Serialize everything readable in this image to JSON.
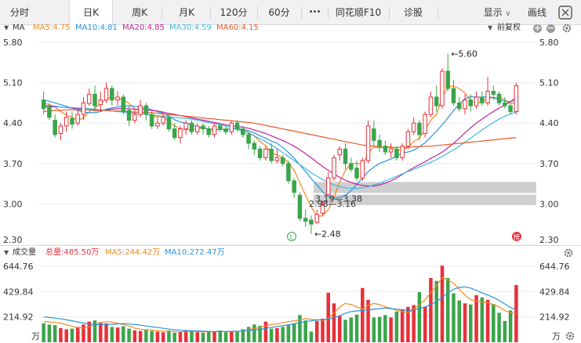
{
  "tabs": [
    {
      "label": "分时",
      "arrow": false
    },
    {
      "label": "日K",
      "arrow": false,
      "active": true
    },
    {
      "label": "周K",
      "arrow": false
    },
    {
      "label": "月K",
      "arrow": false
    },
    {
      "label": "120分",
      "arrow": false
    },
    {
      "label": "60分",
      "arrow": false
    },
    {
      "label": "•••",
      "arrow": false
    },
    {
      "label": "同花顺F10",
      "arrow": true
    },
    {
      "label": "诊股",
      "arrow": false
    },
    {
      "label": "显示",
      "arrow": true
    },
    {
      "label": "画线",
      "arrow": false
    }
  ],
  "kline_header": {
    "title": "MA",
    "ma_labels": [
      {
        "text": "MA5:4.75",
        "color": "#f08a24"
      },
      {
        "text": "MA10:4.81",
        "color": "#2a93e0"
      },
      {
        "text": "MA20:4.85",
        "color": "#c0249c"
      },
      {
        "text": "MA30:4.59",
        "color": "#3fb8e0"
      },
      {
        "text": "MA60:4.15",
        "color": "#e8582a"
      }
    ],
    "adjust_label": "前复权"
  },
  "price_axis": {
    "ticks": [
      "5.80",
      "5.10",
      "4.40",
      "3.70",
      "3.00",
      "2.30"
    ],
    "min": 2.3,
    "max": 5.8
  },
  "annotations": {
    "high": "5.60",
    "low": "2.48",
    "gap_upper": "3.19—3.38",
    "gap_lower": "2.98—3.16",
    "low_badge": "L",
    "list_badge": "榜"
  },
  "volume_header": {
    "title": "成交量",
    "total": "总量:485.50万",
    "ma5": "MA5:244.42万",
    "ma10": "MA10:272.47万"
  },
  "volume_axis": {
    "ticks": [
      "644.76",
      "429.84",
      "214.92"
    ],
    "unit": "万",
    "max": 644.76
  },
  "colors": {
    "up": "#e8303a",
    "down": "#3aa54a",
    "gap": "#cfcfd2"
  },
  "chart_data": {
    "type": "candlestick",
    "candles": [
      [
        4.8,
        4.65,
        4.95,
        4.55
      ],
      [
        4.68,
        4.5,
        4.75,
        4.45
      ],
      [
        4.45,
        4.2,
        4.55,
        4.15
      ],
      [
        4.22,
        4.35,
        4.4,
        4.1
      ],
      [
        4.35,
        4.5,
        4.6,
        4.25
      ],
      [
        4.48,
        4.38,
        4.6,
        4.3
      ],
      [
        4.4,
        4.55,
        4.65,
        4.35
      ],
      [
        4.55,
        4.75,
        4.85,
        4.45
      ],
      [
        4.74,
        4.9,
        5.0,
        4.7
      ],
      [
        4.9,
        4.7,
        5.05,
        4.6
      ],
      [
        4.72,
        4.8,
        4.95,
        4.6
      ],
      [
        4.8,
        5.0,
        5.1,
        4.75
      ],
      [
        5.0,
        4.8,
        5.05,
        4.7
      ],
      [
        4.8,
        4.85,
        4.95,
        4.7
      ],
      [
        4.85,
        4.6,
        4.9,
        4.55
      ],
      [
        4.62,
        4.45,
        4.7,
        4.35
      ],
      [
        4.45,
        4.55,
        4.65,
        4.4
      ],
      [
        4.55,
        4.7,
        4.8,
        4.5
      ],
      [
        4.7,
        4.55,
        4.75,
        4.45
      ],
      [
        4.55,
        4.35,
        4.6,
        4.3
      ],
      [
        4.35,
        4.4,
        4.5,
        4.3
      ],
      [
        4.4,
        4.5,
        4.6,
        4.35
      ],
      [
        4.5,
        4.3,
        4.55,
        4.25
      ],
      [
        4.3,
        4.15,
        4.4,
        4.1
      ],
      [
        4.15,
        4.3,
        4.35,
        4.05
      ],
      [
        4.3,
        4.4,
        4.45,
        4.2
      ],
      [
        4.4,
        4.25,
        4.45,
        4.2
      ],
      [
        4.25,
        4.35,
        4.4,
        4.2
      ],
      [
        4.35,
        4.3,
        4.4,
        4.2
      ],
      [
        4.3,
        4.2,
        4.35,
        4.15
      ],
      [
        4.2,
        4.35,
        4.4,
        4.15
      ],
      [
        4.35,
        4.3,
        4.4,
        4.25
      ],
      [
        4.3,
        4.25,
        4.35,
        4.2
      ],
      [
        4.25,
        4.4,
        4.45,
        4.2
      ],
      [
        4.4,
        4.3,
        4.45,
        4.25
      ],
      [
        4.3,
        4.2,
        4.35,
        4.15
      ],
      [
        4.2,
        4.05,
        4.25,
        3.95
      ],
      [
        4.05,
        3.95,
        4.1,
        3.85
      ],
      [
        3.95,
        3.8,
        4.0,
        3.75
      ],
      [
        3.8,
        3.95,
        4.0,
        3.75
      ],
      [
        3.95,
        3.75,
        4.05,
        3.7
      ],
      [
        3.75,
        3.8,
        3.95,
        3.7
      ],
      [
        3.8,
        3.7,
        3.85,
        3.65
      ],
      [
        3.7,
        3.4,
        3.75,
        3.35
      ],
      [
        3.4,
        3.2,
        3.45,
        3.1
      ],
      [
        3.15,
        2.75,
        3.2,
        2.7
      ],
      [
        2.75,
        2.7,
        2.9,
        2.6
      ],
      [
        2.72,
        2.65,
        2.8,
        2.48
      ],
      [
        2.68,
        2.82,
        2.9,
        2.65
      ],
      [
        2.84,
        2.98,
        3.05,
        2.8
      ],
      [
        3.16,
        3.45,
        3.55,
        3.16
      ],
      [
        3.45,
        3.8,
        3.85,
        3.4
      ],
      [
        3.85,
        3.95,
        4.0,
        3.75
      ],
      [
        3.95,
        3.7,
        4.05,
        3.6
      ],
      [
        3.7,
        3.6,
        3.8,
        3.55
      ],
      [
        3.62,
        3.45,
        3.75,
        3.4
      ],
      [
        3.45,
        3.75,
        3.8,
        3.4
      ],
      [
        3.75,
        4.35,
        4.45,
        3.7
      ],
      [
        4.3,
        4.1,
        4.45,
        4.0
      ],
      [
        4.1,
        4.0,
        4.2,
        3.9
      ],
      [
        4.0,
        3.9,
        4.1,
        3.85
      ],
      [
        3.9,
        3.95,
        4.05,
        3.8
      ],
      [
        3.95,
        3.8,
        4.0,
        3.75
      ],
      [
        3.8,
        4.0,
        4.05,
        3.75
      ],
      [
        4.0,
        4.25,
        4.3,
        3.95
      ],
      [
        4.25,
        4.4,
        4.5,
        4.2
      ],
      [
        4.4,
        4.2,
        4.45,
        4.1
      ],
      [
        4.22,
        4.55,
        4.6,
        4.15
      ],
      [
        4.55,
        4.85,
        4.95,
        4.5
      ],
      [
        4.85,
        4.7,
        5.05,
        4.6
      ],
      [
        4.7,
        5.3,
        5.35,
        4.65
      ],
      [
        5.3,
        5.0,
        5.6,
        4.95
      ],
      [
        5.0,
        4.75,
        5.15,
        4.7
      ],
      [
        4.75,
        4.65,
        4.85,
        4.6
      ],
      [
        4.65,
        4.8,
        4.9,
        4.55
      ],
      [
        4.8,
        4.7,
        4.9,
        4.6
      ],
      [
        4.7,
        4.85,
        4.95,
        4.65
      ],
      [
        4.85,
        4.75,
        4.95,
        4.7
      ],
      [
        4.75,
        4.95,
        5.2,
        4.7
      ],
      [
        4.95,
        4.9,
        5.05,
        4.8
      ],
      [
        4.9,
        4.75,
        4.95,
        4.7
      ],
      [
        4.75,
        4.7,
        4.85,
        4.65
      ],
      [
        4.7,
        4.6,
        4.75,
        4.55
      ],
      [
        4.6,
        5.05,
        5.1,
        4.55
      ]
    ],
    "volumes": [
      160,
      150,
      145,
      120,
      110,
      115,
      130,
      150,
      175,
      185,
      170,
      160,
      130,
      125,
      135,
      115,
      100,
      95,
      110,
      95,
      90,
      85,
      100,
      80,
      90,
      100,
      95,
      85,
      80,
      95,
      90,
      100,
      85,
      95,
      90,
      110,
      130,
      150,
      140,
      175,
      115,
      120,
      130,
      145,
      160,
      230,
      185,
      90,
      180,
      200,
      420,
      330,
      225,
      190,
      210,
      235,
      460,
      360,
      210,
      215,
      230,
      210,
      260,
      280,
      300,
      315,
      425,
      300,
      545,
      520,
      650,
      545,
      415,
      355,
      330,
      320,
      400,
      380,
      360,
      325,
      250,
      180,
      270,
      485
    ],
    "series": [
      {
        "name": "MA5",
        "values": [
          4.75,
          4.72,
          4.68,
          4.6,
          4.54,
          4.5,
          4.45,
          4.49,
          4.6,
          4.66,
          4.73,
          4.83,
          4.84,
          4.83,
          4.81,
          4.74,
          4.65,
          4.6,
          4.57,
          4.52,
          4.51,
          4.52,
          4.42,
          4.35,
          4.3,
          4.29,
          4.28,
          4.3,
          4.32,
          4.29,
          4.28,
          4.29,
          4.29,
          4.3,
          4.31,
          4.29,
          4.24,
          4.18,
          4.08,
          4.01,
          3.88,
          3.85,
          3.8,
          3.72,
          3.58,
          3.37,
          3.15,
          2.95,
          2.79,
          2.79,
          2.9,
          3.12,
          3.38,
          3.58,
          3.7,
          3.7,
          3.69,
          3.87,
          3.99,
          3.97,
          3.99,
          3.99,
          3.93,
          3.93,
          3.98,
          4.08,
          4.14,
          4.28,
          4.45,
          4.55,
          4.84,
          5.03,
          5.04,
          5.0,
          4.92,
          4.79,
          4.75,
          4.77,
          4.83,
          4.84,
          4.85,
          4.8,
          4.74,
          4.75
        ]
      },
      {
        "name": "MA10",
        "values": [
          4.8,
          4.78,
          4.75,
          4.72,
          4.69,
          4.66,
          4.62,
          4.59,
          4.58,
          4.58,
          4.6,
          4.64,
          4.66,
          4.68,
          4.7,
          4.7,
          4.69,
          4.67,
          4.66,
          4.63,
          4.6,
          4.57,
          4.52,
          4.46,
          4.42,
          4.4,
          4.37,
          4.34,
          4.32,
          4.3,
          4.29,
          4.29,
          4.29,
          4.3,
          4.3,
          4.29,
          4.27,
          4.23,
          4.18,
          4.14,
          4.09,
          4.05,
          3.98,
          3.89,
          3.79,
          3.68,
          3.56,
          3.44,
          3.33,
          3.21,
          3.13,
          3.1,
          3.11,
          3.15,
          3.23,
          3.34,
          3.45,
          3.56,
          3.64,
          3.7,
          3.74,
          3.78,
          3.83,
          3.88,
          3.9,
          3.93,
          3.99,
          4.06,
          4.16,
          4.26,
          4.37,
          4.49,
          4.62,
          4.73,
          4.82,
          4.86,
          4.85,
          4.85,
          4.86,
          4.84,
          4.8,
          4.78,
          4.77,
          4.8
        ]
      },
      {
        "name": "MA20",
        "values": [
          4.7,
          4.7,
          4.69,
          4.68,
          4.67,
          4.66,
          4.65,
          4.64,
          4.63,
          4.62,
          4.62,
          4.63,
          4.64,
          4.65,
          4.65,
          4.65,
          4.64,
          4.64,
          4.63,
          4.62,
          4.61,
          4.59,
          4.57,
          4.55,
          4.53,
          4.51,
          4.49,
          4.47,
          4.45,
          4.43,
          4.41,
          4.39,
          4.37,
          4.35,
          4.34,
          4.33,
          4.31,
          4.28,
          4.25,
          4.22,
          4.18,
          4.14,
          4.1,
          4.05,
          4.0,
          3.94,
          3.87,
          3.8,
          3.72,
          3.65,
          3.58,
          3.52,
          3.46,
          3.41,
          3.37,
          3.34,
          3.32,
          3.31,
          3.31,
          3.33,
          3.36,
          3.4,
          3.45,
          3.51,
          3.57,
          3.63,
          3.68,
          3.73,
          3.79,
          3.84,
          3.9,
          3.97,
          4.05,
          4.14,
          4.23,
          4.32,
          4.4,
          4.47,
          4.54,
          4.6,
          4.66,
          4.71,
          4.77,
          4.85
        ]
      },
      {
        "name": "MA30",
        "values": [
          4.68,
          4.68,
          4.68,
          4.68,
          4.67,
          4.67,
          4.66,
          4.66,
          4.65,
          4.64,
          4.63,
          4.62,
          4.61,
          4.6,
          4.59,
          4.58,
          4.57,
          4.56,
          4.55,
          4.54,
          4.53,
          4.52,
          4.51,
          4.5,
          4.49,
          4.48,
          4.47,
          4.45,
          4.43,
          4.41,
          4.39,
          4.37,
          4.35,
          4.32,
          4.29,
          4.26,
          4.22,
          4.18,
          4.13,
          4.08,
          4.02,
          3.96,
          3.89,
          3.82,
          3.75,
          3.68,
          3.61,
          3.54,
          3.48,
          3.42,
          3.37,
          3.33,
          3.3,
          3.28,
          3.27,
          3.27,
          3.28,
          3.3,
          3.33,
          3.36,
          3.4,
          3.44,
          3.48,
          3.52,
          3.56,
          3.6,
          3.64,
          3.68,
          3.72,
          3.77,
          3.82,
          3.88,
          3.94,
          4.0,
          4.07,
          4.14,
          4.21,
          4.28,
          4.35,
          4.41,
          4.47,
          4.52,
          4.56,
          4.59
        ]
      },
      {
        "name": "MA60",
        "values": [
          4.6,
          4.61,
          4.62,
          4.62,
          4.63,
          4.63,
          4.63,
          4.63,
          4.63,
          4.63,
          4.62,
          4.62,
          4.61,
          4.61,
          4.6,
          4.6,
          4.59,
          4.59,
          4.58,
          4.58,
          4.57,
          4.56,
          4.55,
          4.54,
          4.53,
          4.52,
          4.51,
          4.5,
          4.49,
          4.48,
          4.47,
          4.46,
          4.45,
          4.44,
          4.43,
          4.42,
          4.41,
          4.4,
          4.38,
          4.36,
          4.34,
          4.32,
          4.3,
          4.28,
          4.26,
          4.24,
          4.22,
          4.2,
          4.18,
          4.16,
          4.14,
          4.12,
          4.1,
          4.08,
          4.06,
          4.04,
          4.02,
          4.01,
          4.0,
          3.99,
          3.98,
          3.98,
          3.98,
          3.98,
          3.98,
          3.99,
          3.99,
          4.0,
          4.0,
          4.01,
          4.02,
          4.03,
          4.04,
          4.05,
          4.06,
          4.07,
          4.08,
          4.09,
          4.1,
          4.11,
          4.12,
          4.13,
          4.14,
          4.15
        ]
      },
      {
        "name": "MA5",
        "values": [
          175,
          172,
          168,
          162,
          148,
          135,
          125,
          120,
          130,
          150,
          165,
          175,
          170,
          160,
          150,
          138,
          120,
          110,
          105,
          102,
          98,
          95,
          92,
          90,
          88,
          92,
          94,
          92,
          88,
          90,
          90,
          92,
          90,
          90,
          92,
          96,
          106,
          116,
          125,
          140,
          150,
          155,
          165,
          175,
          180,
          190,
          200,
          195,
          190,
          185,
          200,
          250,
          300,
          330,
          320,
          300,
          280,
          310,
          330,
          320,
          300,
          290,
          270,
          260,
          250,
          280,
          320,
          360,
          420,
          480,
          550,
          530,
          500,
          450,
          400,
          360,
          350,
          340,
          335,
          320,
          300,
          270,
          250,
          244
        ]
      },
      {
        "name": "MA10",
        "values": [
          215,
          210,
          205,
          198,
          190,
          182,
          172,
          162,
          155,
          150,
          148,
          150,
          152,
          155,
          158,
          155,
          150,
          145,
          138,
          130,
          125,
          118,
          112,
          106,
          102,
          100,
          98,
          96,
          94,
          92,
          91,
          91,
          91,
          92,
          93,
          95,
          99,
          104,
          110,
          117,
          125,
          133,
          140,
          148,
          157,
          166,
          175,
          182,
          188,
          193,
          196,
          210,
          225,
          245,
          260,
          265,
          270,
          275,
          280,
          285,
          290,
          285,
          280,
          275,
          270,
          275,
          285,
          300,
          320,
          345,
          380,
          420,
          450,
          465,
          470,
          460,
          440,
          420,
          400,
          380,
          355,
          325,
          295,
          272
        ]
      }
    ]
  }
}
